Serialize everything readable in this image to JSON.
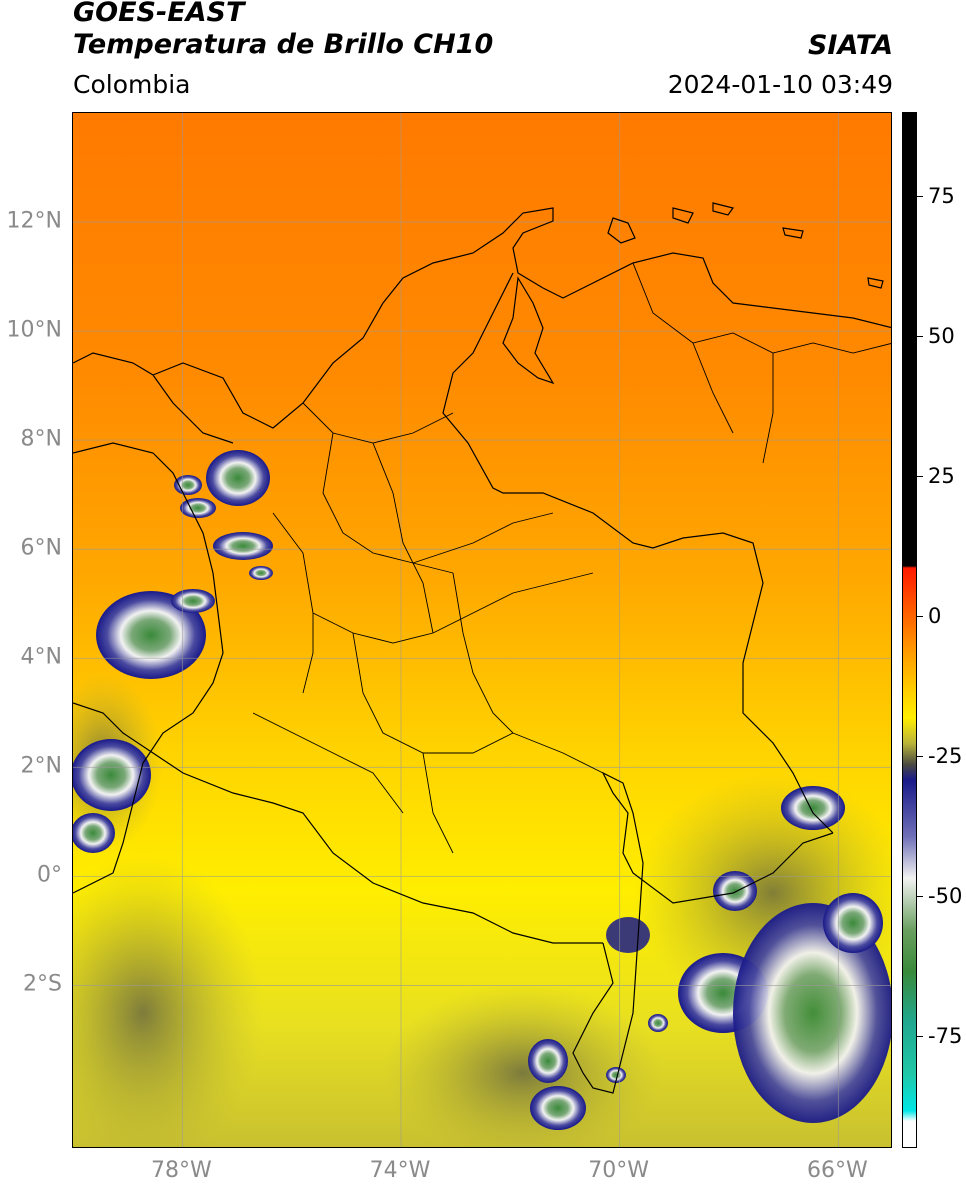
{
  "header": {
    "satellite": "GOES-EAST",
    "product": "Temperatura de Brillo CH10",
    "region": "Colombia",
    "brand": "SIATA",
    "datetime": "2024-01-10 03:49"
  },
  "map": {
    "lat_ticks": [
      "12°N",
      "10°N",
      "8°N",
      "6°N",
      "4°N",
      "2°N",
      "0°",
      "2°S"
    ],
    "lon_ticks": [
      "78°W",
      "74°W",
      "70°W",
      "66°W"
    ],
    "lat_values": [
      12,
      10,
      8,
      6,
      4,
      2,
      0,
      -2
    ],
    "lon_values": [
      -78,
      -74,
      -70,
      -66
    ]
  },
  "colorbar": {
    "tick_labels": [
      "75",
      "50",
      "25",
      "0",
      "-25",
      "-50",
      "-75"
    ],
    "tick_values": [
      75,
      50,
      25,
      0,
      -25,
      -50,
      -75
    ],
    "colors": {
      "top": "#000000",
      "red": "#ff1a00",
      "orange": "#ff7a00",
      "yellow": "#ffee00",
      "olive": "#b8b23a",
      "navy": "#1a1a8a",
      "white": "#f2f2f2",
      "green": "#3a8a3a",
      "teal": "#20c8a8",
      "cyan": "#00e6e6"
    }
  }
}
